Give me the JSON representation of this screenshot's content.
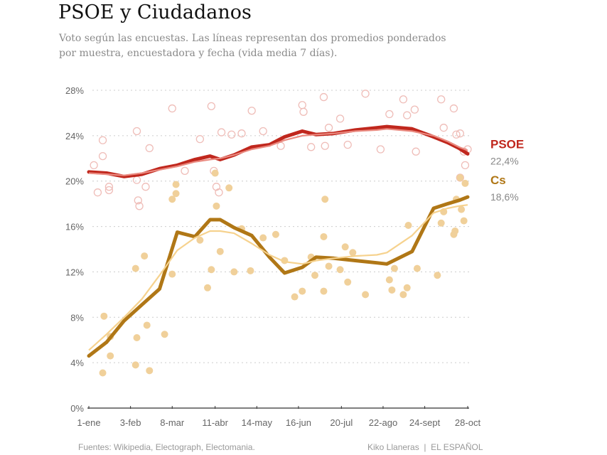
{
  "title": "PSOE y Ciudadanos",
  "subtitle": "Voto según las encuestas. Las líneas representan dos promedios ponderados por muestra, encuestadora y fecha (vida media 7 días).",
  "footer": {
    "sources": "Fuentes: Wikipedia, Electograph, Electomania.",
    "credit": "Kiko Llaneras  |  EL ESPAÑOL"
  },
  "chart_data": {
    "type": "line",
    "title": "PSOE y Ciudadanos",
    "xlabel": "",
    "ylabel": "",
    "ylim": [
      0,
      28
    ],
    "yticks": [
      "0%",
      "4%",
      "8%",
      "12%",
      "16%",
      "20%",
      "24%",
      "28%"
    ],
    "ytick_values": [
      0,
      4,
      8,
      12,
      16,
      20,
      24,
      28
    ],
    "xticks": [
      "1-ene",
      "3-feb",
      "8-mar",
      "11-abr",
      "14-may",
      "16-jun",
      "20-jul",
      "22-ago",
      "24-sept",
      "28-oct"
    ],
    "xlim": [
      "1-ene",
      "28-oct"
    ],
    "grid": "horizontal dotted",
    "legend": "right, direct labels",
    "x": [
      "1-ene",
      "15-ene",
      "29-ene",
      "12-feb",
      "26-feb",
      "12-mar",
      "26-mar",
      "7-abr",
      "15-abr",
      "26-abr",
      "10-may",
      "24-may",
      "5-jun",
      "19-jun",
      "30-jun",
      "14-jul",
      "31-jul",
      "17-ago",
      "25-ago",
      "14-sept",
      "1-oct",
      "12-oct",
      "21-oct",
      "28-oct"
    ],
    "series": [
      {
        "name": "PSOE",
        "label_value": "22,4%",
        "color": "#c0271d",
        "avg_color": "#ea8a80",
        "poll_color": "#efbdb8",
        "values": [
          20.8,
          20.7,
          20.4,
          20.6,
          21.1,
          21.4,
          21.9,
          22.2,
          21.9,
          22.3,
          23.0,
          23.2,
          23.9,
          24.4,
          24.1,
          24.2,
          24.5,
          24.7,
          24.8,
          24.6,
          23.9,
          23.4,
          22.9,
          22.4
        ],
        "alt_values": [
          20.7,
          20.6,
          20.5,
          20.7,
          21.0,
          21.3,
          21.7,
          21.9,
          22.0,
          22.3,
          22.8,
          23.1,
          23.6,
          24.0,
          24.1,
          24.2,
          24.4,
          24.5,
          24.6,
          24.4,
          24.0,
          23.5,
          23.0,
          22.7
        ],
        "polls": [
          [
            "5-ene",
            21.4
          ],
          [
            "12-ene",
            22.2
          ],
          [
            "12-ene",
            23.6
          ],
          [
            "17-ene",
            19.5
          ],
          [
            "8-ene",
            19.0
          ],
          [
            "17-ene",
            19.2
          ],
          [
            "8-feb",
            24.4
          ],
          [
            "8-feb",
            20.1
          ],
          [
            "9-feb",
            18.3
          ],
          [
            "10-feb",
            17.8
          ],
          [
            "18-feb",
            22.9
          ],
          [
            "15-feb",
            19.5
          ],
          [
            "8-mar",
            26.4
          ],
          [
            "18-mar",
            20.9
          ],
          [
            "30-mar",
            23.7
          ],
          [
            "8-abr",
            26.6
          ],
          [
            "10-abr",
            20.9
          ],
          [
            "12-abr",
            19.5
          ],
          [
            "14-abr",
            19.0
          ],
          [
            "16-abr",
            24.3
          ],
          [
            "24-abr",
            24.1
          ],
          [
            "2-may",
            24.2
          ],
          [
            "10-may",
            26.2
          ],
          [
            "19-may",
            24.4
          ],
          [
            "2-jun",
            23.1
          ],
          [
            "19-jun",
            26.7
          ],
          [
            "20-jun",
            26.1
          ],
          [
            "26-jun",
            23.0
          ],
          [
            "6-jul",
            27.4
          ],
          [
            "7-jul",
            23.1
          ],
          [
            "10-jul",
            24.7
          ],
          [
            "19-jul",
            25.5
          ],
          [
            "25-jul",
            23.2
          ],
          [
            "8-ago",
            27.7
          ],
          [
            "20-ago",
            22.8
          ],
          [
            "27-ago",
            25.9
          ],
          [
            "7-sept",
            27.2
          ],
          [
            "10-sept",
            25.8
          ],
          [
            "16-sept",
            26.3
          ],
          [
            "17-sept",
            22.6
          ],
          [
            "7-oct",
            27.2
          ],
          [
            "9-oct",
            24.7
          ],
          [
            "17-oct",
            26.4
          ],
          [
            "19-oct",
            24.1
          ],
          [
            "22-oct",
            24.2
          ],
          [
            "25-oct",
            22.6
          ],
          [
            "28-oct",
            22.8
          ],
          [
            "26-oct",
            21.4
          ],
          [
            "22-oct",
            20.3
          ]
        ]
      },
      {
        "name": "Cs",
        "label_value": "18,6%",
        "color": "#b07716",
        "avg_color": "#f6d28e",
        "poll_color": "#f0d09a",
        "values": [
          4.6,
          5.8,
          7.7,
          9.1,
          10.5,
          15.5,
          15.1,
          16.6,
          16.6,
          15.9,
          15.2,
          13.3,
          11.9,
          12.4,
          13.3,
          13.2,
          13.0,
          12.8,
          12.7,
          13.8,
          17.6,
          18.0,
          18.3,
          18.6
        ],
        "alt_values": [
          5.1,
          6.5,
          8.0,
          9.6,
          11.7,
          13.9,
          15.0,
          15.6,
          15.6,
          15.4,
          14.5,
          13.5,
          12.9,
          12.7,
          13.0,
          13.2,
          13.4,
          13.5,
          13.7,
          15.2,
          17.2,
          17.6,
          17.8,
          17.9
        ],
        "polls": [
          [
            "13-ene",
            8.1
          ],
          [
            "12-ene",
            3.1
          ],
          [
            "18-ene",
            6.3
          ],
          [
            "18-ene",
            4.6
          ],
          [
            "7-feb",
            12.3
          ],
          [
            "8-feb",
            6.2
          ],
          [
            "7-feb",
            3.8
          ],
          [
            "14-feb",
            13.4
          ],
          [
            "16-feb",
            7.3
          ],
          [
            "18-feb",
            3.3
          ],
          [
            "2-mar",
            6.5
          ],
          [
            "8-mar",
            11.8
          ],
          [
            "8-mar",
            18.4
          ],
          [
            "11-mar",
            19.7
          ],
          [
            "11-mar",
            18.9
          ],
          [
            "30-mar",
            14.8
          ],
          [
            "5-abr",
            10.6
          ],
          [
            "8-abr",
            12.2
          ],
          [
            "11-abr",
            20.7
          ],
          [
            "12-abr",
            17.8
          ],
          [
            "15-abr",
            13.8
          ],
          [
            "22-abr",
            19.4
          ],
          [
            "26-abr",
            12.0
          ],
          [
            "2-may",
            15.8
          ],
          [
            "9-may",
            12.1
          ],
          [
            "19-may",
            15.0
          ],
          [
            "29-may",
            15.3
          ],
          [
            "5-jun",
            13.0
          ],
          [
            "13-jun",
            9.8
          ],
          [
            "19-jun",
            10.3
          ],
          [
            "26-jun",
            13.3
          ],
          [
            "29-jun",
            11.7
          ],
          [
            "6-jul",
            10.3
          ],
          [
            "7-jul",
            18.4
          ],
          [
            "6-jul",
            15.1
          ],
          [
            "10-jul",
            12.5
          ],
          [
            "19-jul",
            12.2
          ],
          [
            "23-jul",
            14.2
          ],
          [
            "25-jul",
            11.1
          ],
          [
            "29-jul",
            13.7
          ],
          [
            "8-ago",
            10.0
          ],
          [
            "27-ago",
            11.3
          ],
          [
            "29-ago",
            10.4
          ],
          [
            "31-ago",
            12.3
          ],
          [
            "7-sept",
            10.0
          ],
          [
            "10-sept",
            10.6
          ],
          [
            "11-sept",
            16.1
          ],
          [
            "18-sept",
            12.3
          ],
          [
            "4-oct",
            11.7
          ],
          [
            "7-oct",
            16.3
          ],
          [
            "9-oct",
            17.3
          ],
          [
            "17-oct",
            15.3
          ],
          [
            "18-oct",
            15.6
          ],
          [
            "19-oct",
            18.4
          ],
          [
            "22-oct",
            20.3
          ],
          [
            "23-oct",
            17.5
          ],
          [
            "25-oct",
            16.5
          ],
          [
            "26-oct",
            19.8
          ]
        ]
      }
    ]
  }
}
